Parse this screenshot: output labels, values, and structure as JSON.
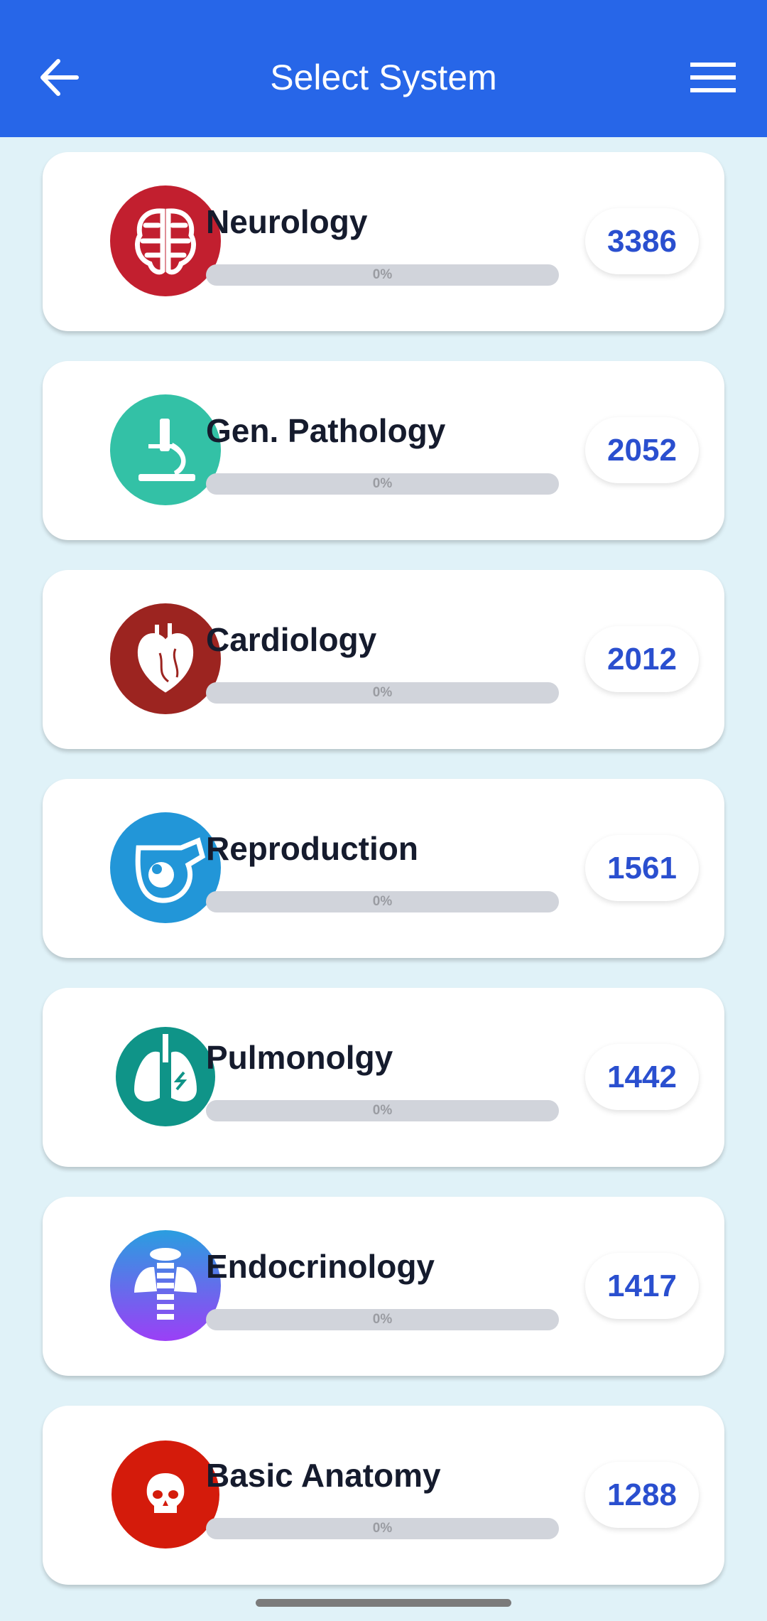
{
  "header": {
    "title": "Select System",
    "back_icon": "arrow-left-icon",
    "menu_icon": "hamburger-menu-icon",
    "color": "#2766e8"
  },
  "systems": [
    {
      "name": "Neurology",
      "count": "3386",
      "progress": 0,
      "progress_label": "0%",
      "icon": "brain-icon",
      "color": "#c21f2f"
    },
    {
      "name": "Gen. Pathology",
      "count": "2052",
      "progress": 0,
      "progress_label": "0%",
      "icon": "microscope-icon",
      "color": "#33c1a6"
    },
    {
      "name": "Cardiology",
      "count": "2012",
      "progress": 0,
      "progress_label": "0%",
      "icon": "heart-icon",
      "color": "#9c2420"
    },
    {
      "name": "Reproduction",
      "count": "1561",
      "progress": 0,
      "progress_label": "0%",
      "icon": "fetus-icon",
      "color": "#2296d8"
    },
    {
      "name": "Pulmonolgy",
      "count": "1442",
      "progress": 0,
      "progress_label": "0%",
      "icon": "lungs-icon",
      "color": "#0f9488"
    },
    {
      "name": "Endocrinology",
      "count": "1417",
      "progress": 0,
      "progress_label": "0%",
      "icon": "thyroid-icon",
      "color": "#6b5cf0"
    },
    {
      "name": "Basic Anatomy",
      "count": "1288",
      "progress": 0,
      "progress_label": "0%",
      "icon": "skull-icon",
      "color": "#d41b0b"
    }
  ]
}
